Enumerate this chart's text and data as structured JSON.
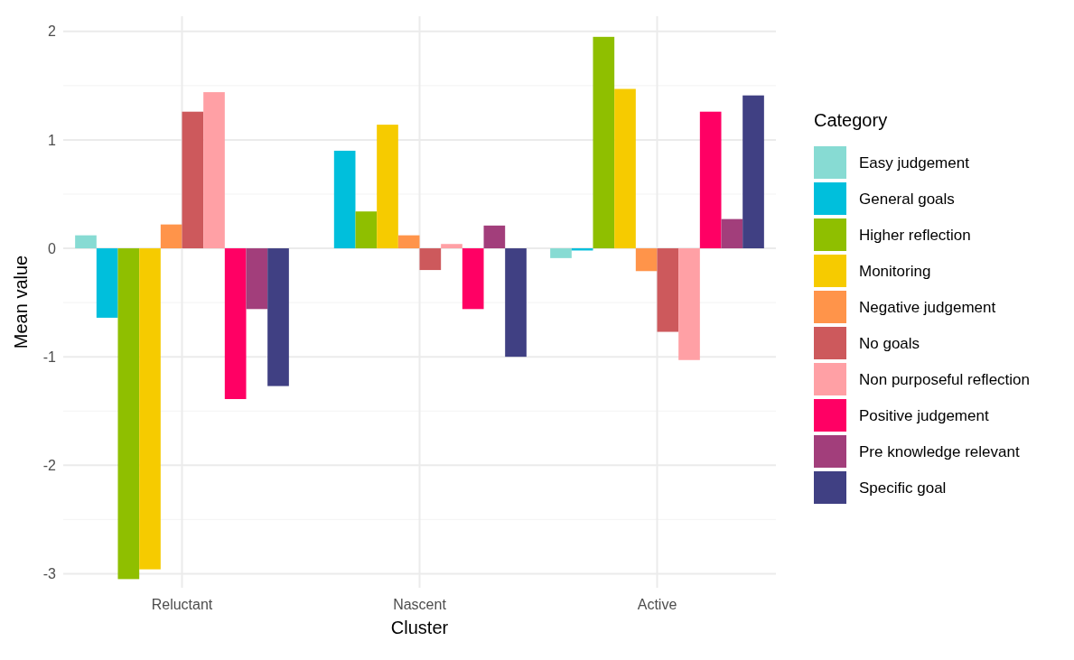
{
  "chart_data": {
    "type": "bar",
    "xlabel": "Cluster",
    "ylabel": "Mean value",
    "legend_title": "Category",
    "categories": [
      "Reluctant",
      "Nascent",
      "Active"
    ],
    "series": [
      {
        "name": "Easy judgement",
        "color": "#87dbd3",
        "values": [
          0.12,
          0,
          -0.09
        ]
      },
      {
        "name": "General goals",
        "color": "#00bfdc",
        "values": [
          -0.64,
          0.9,
          -0.02
        ]
      },
      {
        "name": "Higher reflection",
        "color": "#8fbf00",
        "values": [
          -3.05,
          0.34,
          1.95
        ]
      },
      {
        "name": "Monitoring",
        "color": "#f6cb00",
        "values": [
          -2.96,
          1.14,
          1.47
        ]
      },
      {
        "name": "Negative judgement",
        "color": "#ff944a",
        "values": [
          0.22,
          0.12,
          -0.21
        ]
      },
      {
        "name": "No goals",
        "color": "#cd595c",
        "values": [
          1.26,
          -0.2,
          -0.77
        ]
      },
      {
        "name": "Non purposeful reflection",
        "color": "#ffa0a5",
        "values": [
          1.44,
          0.04,
          -1.03
        ]
      },
      {
        "name": "Positive judgement",
        "color": "#ff0064",
        "values": [
          -1.39,
          -0.56,
          1.26
        ]
      },
      {
        "name": "Pre knowledge relevant",
        "color": "#a23e7b",
        "values": [
          -0.56,
          0.21,
          0.27
        ]
      },
      {
        "name": "Specific goal",
        "color": "#404083",
        "values": [
          -1.27,
          -1.0,
          1.41
        ]
      }
    ],
    "ylim": [
      -3.13,
      2.14
    ],
    "yticks": [
      -3,
      -2,
      -1,
      0,
      1,
      2
    ],
    "grid": true,
    "legend": "right"
  }
}
